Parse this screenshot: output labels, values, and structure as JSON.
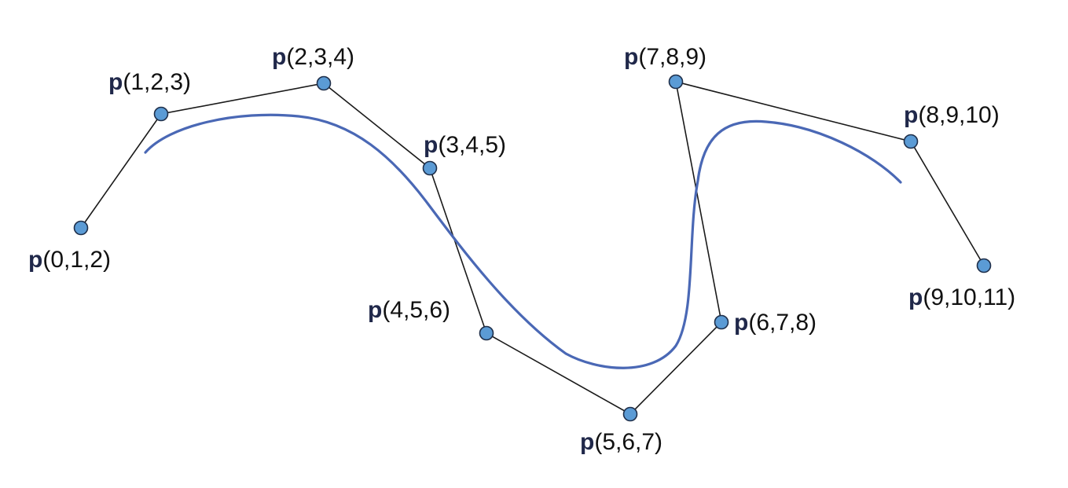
{
  "colors": {
    "background": "#ffffff",
    "control_polygon": "#1a1a1a",
    "curve": "#4a68b5",
    "point_fill": "#5b9bd5",
    "point_stroke": "#1f2f4a",
    "label_p": "#20284a",
    "label_text": "#111111"
  },
  "points": [
    {
      "id": "p0",
      "letter": "p",
      "args": "(0,1,2)"
    },
    {
      "id": "p1",
      "letter": "p",
      "args": "(1,2,3)"
    },
    {
      "id": "p2",
      "letter": "p",
      "args": "(2,3,4)"
    },
    {
      "id": "p3",
      "letter": "p",
      "args": "(3,4,5)"
    },
    {
      "id": "p4",
      "letter": "p",
      "args": "(4,5,6)"
    },
    {
      "id": "p5",
      "letter": "p",
      "args": "(5,6,7)"
    },
    {
      "id": "p6",
      "letter": "p",
      "args": "(6,7,8)"
    },
    {
      "id": "p7",
      "letter": "p",
      "args": "(7,8,9)"
    },
    {
      "id": "p8",
      "letter": "p",
      "args": "(8,9,10)"
    },
    {
      "id": "p9",
      "letter": "p",
      "args": "(9,10,11)"
    }
  ]
}
